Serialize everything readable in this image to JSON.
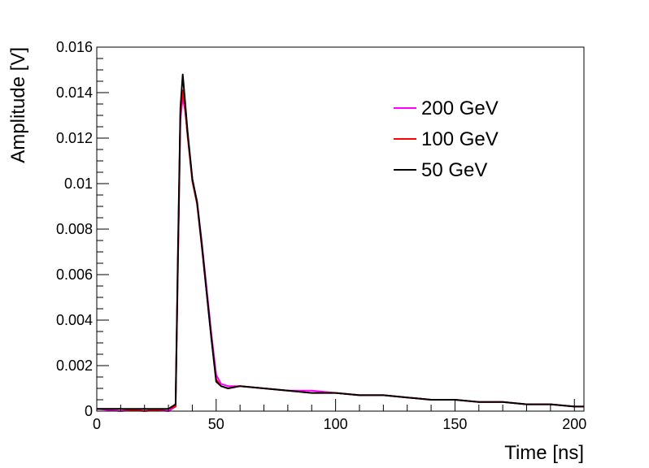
{
  "chart_data": {
    "type": "line",
    "title": "",
    "xlabel": "Time [ns]",
    "ylabel": "Amplitude [V]",
    "xlim": [
      0,
      204
    ],
    "ylim": [
      0,
      0.016
    ],
    "x_ticks": [
      0,
      50,
      100,
      150,
      200
    ],
    "x_tick_labels": [
      "0",
      "50",
      "100",
      "150",
      "200"
    ],
    "y_ticks": [
      0,
      0.002,
      0.004,
      0.006,
      0.008,
      0.01,
      0.012,
      0.014,
      0.016
    ],
    "y_tick_labels": [
      "0",
      "0.002",
      "0.004",
      "0.006",
      "0.008",
      "0.01",
      "0.012",
      "0.014",
      "0.016"
    ],
    "grid": false,
    "legend_position": "top-right",
    "x": [
      0,
      10,
      20,
      30,
      33,
      34,
      35,
      36,
      37,
      38,
      40,
      42,
      44,
      46,
      48,
      50,
      52,
      55,
      60,
      70,
      80,
      90,
      100,
      110,
      120,
      130,
      140,
      150,
      160,
      170,
      180,
      190,
      200,
      204
    ],
    "series": [
      {
        "name": "200 GeV",
        "color": "#ff00ff",
        "values": [
          0.0001,
          0.0,
          0.0001,
          0.0,
          0.0002,
          0.0065,
          0.0128,
          0.0138,
          0.0132,
          0.0122,
          0.0102,
          0.0092,
          0.0074,
          0.0054,
          0.0034,
          0.0016,
          0.0012,
          0.0011,
          0.0011,
          0.001,
          0.0009,
          0.0009,
          0.0008,
          0.0007,
          0.0007,
          0.0006,
          0.0005,
          0.0005,
          0.0004,
          0.0004,
          0.0003,
          0.0003,
          0.0002,
          0.0002
        ]
      },
      {
        "name": "100 GeV",
        "color": "#ff0000",
        "values": [
          0.0001,
          0.0001,
          0.0,
          0.0001,
          0.0002,
          0.0066,
          0.013,
          0.0141,
          0.0133,
          0.0121,
          0.0101,
          0.0091,
          0.0072,
          0.0052,
          0.0032,
          0.0014,
          0.0011,
          0.001,
          0.0011,
          0.001,
          0.0009,
          0.0008,
          0.0008,
          0.0007,
          0.0007,
          0.0006,
          0.0005,
          0.0005,
          0.0004,
          0.0004,
          0.0003,
          0.0003,
          0.0002,
          0.0002
        ]
      },
      {
        "name": "50 GeV",
        "color": "#000000",
        "values": [
          0.0001,
          0.0001,
          0.0001,
          0.0001,
          0.0003,
          0.007,
          0.0133,
          0.0148,
          0.0136,
          0.0123,
          0.0102,
          0.0092,
          0.0073,
          0.0052,
          0.0032,
          0.0013,
          0.0011,
          0.001,
          0.0011,
          0.001,
          0.0009,
          0.0008,
          0.0008,
          0.0007,
          0.0007,
          0.0006,
          0.0005,
          0.0005,
          0.0004,
          0.0004,
          0.0003,
          0.0003,
          0.0002,
          0.0002
        ]
      }
    ]
  }
}
